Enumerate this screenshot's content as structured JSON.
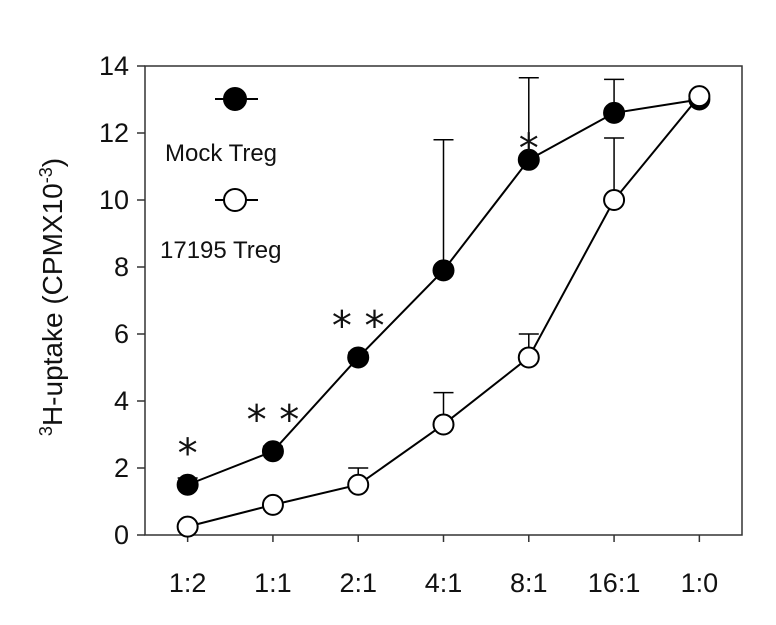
{
  "chart_data": {
    "type": "line",
    "categories": [
      "1:2",
      "1:1",
      "2:1",
      "4:1",
      "8:1",
      "16:1",
      "1:0"
    ],
    "ylabel": {
      "sup_prefix": "3",
      "main": "H-uptake (CPMX10",
      "sup_suffix": "-3",
      "end": ")"
    },
    "ylim": [
      0,
      14
    ],
    "yticks": [
      0,
      2,
      4,
      6,
      8,
      10,
      12,
      14
    ],
    "grid": false,
    "legend_position": "top-left",
    "series": [
      {
        "name": "Mock Treg",
        "marker": "filled-circle",
        "color": "#000000",
        "values": [
          1.5,
          2.5,
          5.3,
          7.9,
          11.2,
          12.6,
          13.0
        ],
        "error_upper": [
          0.2,
          0.15,
          0.15,
          3.9,
          2.45,
          1.0,
          0.1
        ]
      },
      {
        "name": "17195 Treg",
        "marker": "open-circle",
        "color": "#000000",
        "values": [
          0.25,
          0.9,
          1.5,
          3.3,
          5.3,
          10.0,
          13.1
        ],
        "error_upper": [
          0.05,
          0.1,
          0.5,
          0.95,
          0.7,
          1.85,
          0.05
        ]
      }
    ],
    "annotations": [
      "*",
      "**",
      "**",
      "",
      "*",
      "",
      ""
    ]
  }
}
